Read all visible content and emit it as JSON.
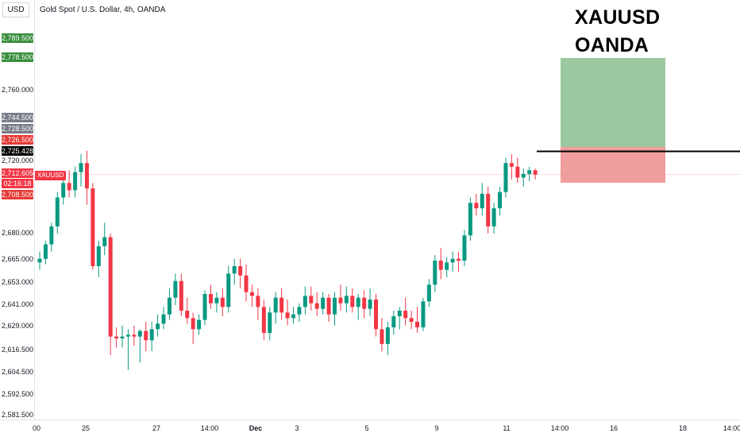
{
  "header": {
    "currency_button": "USD",
    "symbol_title": "Gold Spot / U.S. Dollar, 4h, OANDA"
  },
  "overlay_text": {
    "line1": "XAUUSD",
    "line2": "OANDA"
  },
  "y_axis": {
    "ticks": [
      "2,760.000",
      "2,720.000",
      "2,680.000",
      "2,665.000",
      "2,653.000",
      "2,641.000",
      "2,629.000",
      "2,616.500",
      "2,604.500",
      "2,592.500",
      "2,581.500"
    ],
    "price_tags": {
      "tp_top": "2,789.500",
      "tp": "2,778.500",
      "gray1": "2,744.500",
      "gray2": "2,728.500",
      "red_a": "2,726.500",
      "crosshair": "2,725.428",
      "last_price": "2,712.605",
      "countdown": "02:16:18",
      "stop": "2,708.500"
    }
  },
  "x_axis": {
    "labels": [
      "00",
      "25",
      "27",
      "14:00",
      "Dec",
      "3",
      "5",
      "9",
      "11",
      "14:00",
      "16",
      "18",
      "14:00"
    ]
  },
  "symbol_tag": "XAUUSD",
  "colors": {
    "up": "#089981",
    "down": "#f23645",
    "tp_zone": "#89be8f",
    "sl_zone": "#ec8c8c",
    "tag_green": "#388e3c",
    "tag_gray": "#787b86",
    "tag_red": "#e53935",
    "tag_black": "#000000"
  },
  "chart_data": {
    "type": "candlestick",
    "symbol": "XAUUSD",
    "timeframe": "4h",
    "ohlc": [
      [
        2664,
        2670,
        2660,
        2666
      ],
      [
        2666,
        2676,
        2663,
        2674
      ],
      [
        2674,
        2686,
        2670,
        2684
      ],
      [
        2684,
        2703,
        2680,
        2700
      ],
      [
        2700,
        2712,
        2696,
        2708
      ],
      [
        2708,
        2715,
        2700,
        2704
      ],
      [
        2704,
        2717,
        2700,
        2714
      ],
      [
        2714,
        2724,
        2706,
        2719
      ],
      [
        2719,
        2726,
        2696,
        2705
      ],
      [
        2705,
        2708,
        2660,
        2662
      ],
      [
        2662,
        2676,
        2656,
        2673
      ],
      [
        2673,
        2686,
        2668,
        2678
      ],
      [
        2678,
        2680,
        2614,
        2624
      ],
      [
        2624,
        2629,
        2618,
        2623
      ],
      [
        2623,
        2630,
        2618,
        2624
      ],
      [
        2624,
        2628,
        2606,
        2625
      ],
      [
        2625,
        2630,
        2619,
        2624
      ],
      [
        2624,
        2628,
        2610,
        2627
      ],
      [
        2627,
        2632,
        2616,
        2622
      ],
      [
        2622,
        2632,
        2616,
        2628
      ],
      [
        2628,
        2636,
        2624,
        2631
      ],
      [
        2631,
        2640,
        2628,
        2636
      ],
      [
        2636,
        2650,
        2633,
        2645
      ],
      [
        2645,
        2658,
        2641,
        2654
      ],
      [
        2654,
        2658,
        2635,
        2638
      ],
      [
        2638,
        2645,
        2631,
        2634
      ],
      [
        2634,
        2637,
        2620,
        2628
      ],
      [
        2628,
        2636,
        2625,
        2633
      ],
      [
        2633,
        2649,
        2630,
        2647
      ],
      [
        2647,
        2652,
        2639,
        2642
      ],
      [
        2642,
        2648,
        2637,
        2645
      ],
      [
        2645,
        2650,
        2635,
        2640
      ],
      [
        2640,
        2662,
        2637,
        2658
      ],
      [
        2658,
        2666,
        2652,
        2662
      ],
      [
        2662,
        2666,
        2650,
        2657
      ],
      [
        2657,
        2663,
        2643,
        2648
      ],
      [
        2648,
        2652,
        2640,
        2646
      ],
      [
        2646,
        2650,
        2633,
        2640
      ],
      [
        2640,
        2644,
        2622,
        2626
      ],
      [
        2626,
        2640,
        2622,
        2637
      ],
      [
        2637,
        2648,
        2631,
        2645
      ],
      [
        2645,
        2650,
        2633,
        2637
      ],
      [
        2637,
        2644,
        2630,
        2634
      ],
      [
        2634,
        2640,
        2631,
        2636
      ],
      [
        2636,
        2642,
        2632,
        2640
      ],
      [
        2640,
        2651,
        2636,
        2646
      ],
      [
        2646,
        2651,
        2638,
        2642
      ],
      [
        2642,
        2648,
        2635,
        2639
      ],
      [
        2639,
        2648,
        2636,
        2645
      ],
      [
        2645,
        2647,
        2632,
        2636
      ],
      [
        2636,
        2648,
        2630,
        2645
      ],
      [
        2645,
        2652,
        2638,
        2642
      ],
      [
        2642,
        2651,
        2637,
        2646
      ],
      [
        2646,
        2650,
        2637,
        2640
      ],
      [
        2640,
        2647,
        2633,
        2645
      ],
      [
        2645,
        2649,
        2634,
        2639
      ],
      [
        2639,
        2650,
        2635,
        2644
      ],
      [
        2644,
        2647,
        2624,
        2628
      ],
      [
        2628,
        2634,
        2616,
        2620
      ],
      [
        2620,
        2632,
        2614,
        2629
      ],
      [
        2629,
        2638,
        2625,
        2635
      ],
      [
        2635,
        2640,
        2628,
        2638
      ],
      [
        2638,
        2645,
        2630,
        2634
      ],
      [
        2634,
        2638,
        2628,
        2632
      ],
      [
        2632,
        2640,
        2626,
        2629
      ],
      [
        2629,
        2645,
        2627,
        2643
      ],
      [
        2643,
        2655,
        2640,
        2652
      ],
      [
        2652,
        2668,
        2648,
        2665
      ],
      [
        2665,
        2672,
        2655,
        2660
      ],
      [
        2660,
        2667,
        2656,
        2664
      ],
      [
        2664,
        2670,
        2659,
        2666
      ],
      [
        2666,
        2670,
        2659,
        2665
      ],
      [
        2665,
        2682,
        2662,
        2679
      ],
      [
        2679,
        2700,
        2676,
        2697
      ],
      [
        2697,
        2702,
        2690,
        2694
      ],
      [
        2694,
        2708,
        2690,
        2702
      ],
      [
        2702,
        2706,
        2680,
        2684
      ],
      [
        2684,
        2697,
        2680,
        2694
      ],
      [
        2694,
        2706,
        2690,
        2703
      ],
      [
        2703,
        2722,
        2700,
        2719
      ],
      [
        2719,
        2724,
        2710,
        2717
      ],
      [
        2717,
        2722,
        2708,
        2711
      ],
      [
        2711,
        2716,
        2706,
        2713
      ],
      [
        2713,
        2717,
        2709,
        2715
      ],
      [
        2715,
        2716,
        2710,
        2712.6
      ]
    ],
    "last_price": 2712.605,
    "trade_setup": {
      "entry": 2725.428,
      "take_profit": 2778.5,
      "stop_loss": 2708.5
    },
    "price_scale": "non-linear (TradingView auto scale)",
    "grid": false,
    "legend": "none"
  }
}
